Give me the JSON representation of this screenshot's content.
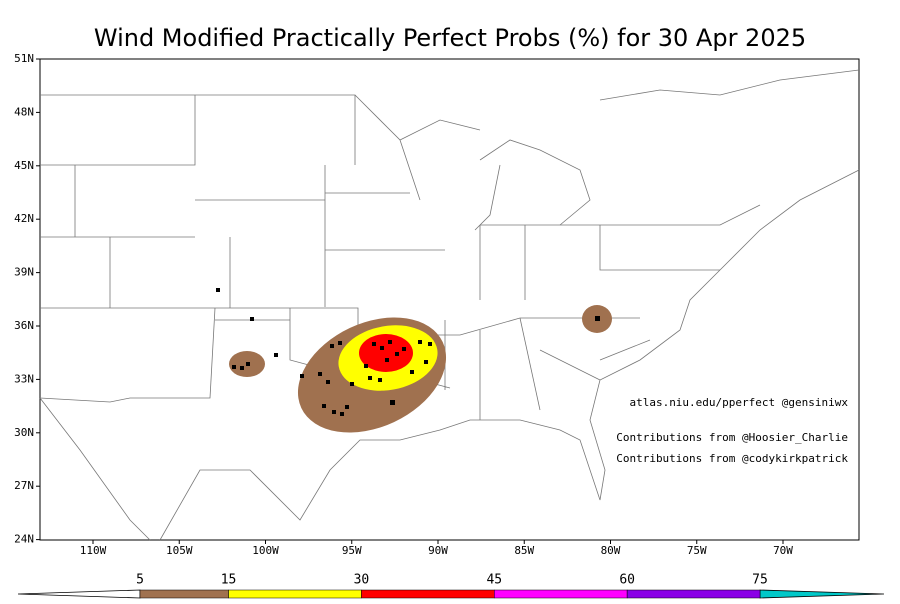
{
  "map": {
    "title": "Wind Modified Practically Perfect Probs (%) for 30 Apr 2025",
    "lat_ticks": [
      {
        "value": 51,
        "label": "51N"
      },
      {
        "value": 48,
        "label": "48N"
      },
      {
        "value": 45,
        "label": "45N"
      },
      {
        "value": 42,
        "label": "42N"
      },
      {
        "value": 39,
        "label": "39N"
      },
      {
        "value": 36,
        "label": "36N"
      },
      {
        "value": 33,
        "label": "33N"
      },
      {
        "value": 30,
        "label": "30N"
      },
      {
        "value": 27,
        "label": "27N"
      },
      {
        "value": 24,
        "label": "24N"
      }
    ],
    "lon_ticks": [
      {
        "value": -110,
        "label": "110W"
      },
      {
        "value": -105,
        "label": "105W"
      },
      {
        "value": -100,
        "label": "100W"
      },
      {
        "value": -95,
        "label": "95W"
      },
      {
        "value": -90,
        "label": "90W"
      },
      {
        "value": -85,
        "label": "85W"
      },
      {
        "value": -80,
        "label": "80W"
      },
      {
        "value": -75,
        "label": "75W"
      },
      {
        "value": -70,
        "label": "70W"
      }
    ],
    "credits": [
      "atlas.niu.edu/pperfect @gensiniwx",
      "Contributions from @Hoosier_Charlie",
      "Contributions from @codykirkpatrick"
    ],
    "colorbar": {
      "levels": [
        5,
        15,
        30,
        45,
        60,
        75
      ],
      "colors": [
        "#ffffff",
        "#a0714f",
        "#ffff00",
        "#ff0000",
        "#ff00ff",
        "#8a00e6",
        "#00c8c8"
      ]
    }
  }
}
